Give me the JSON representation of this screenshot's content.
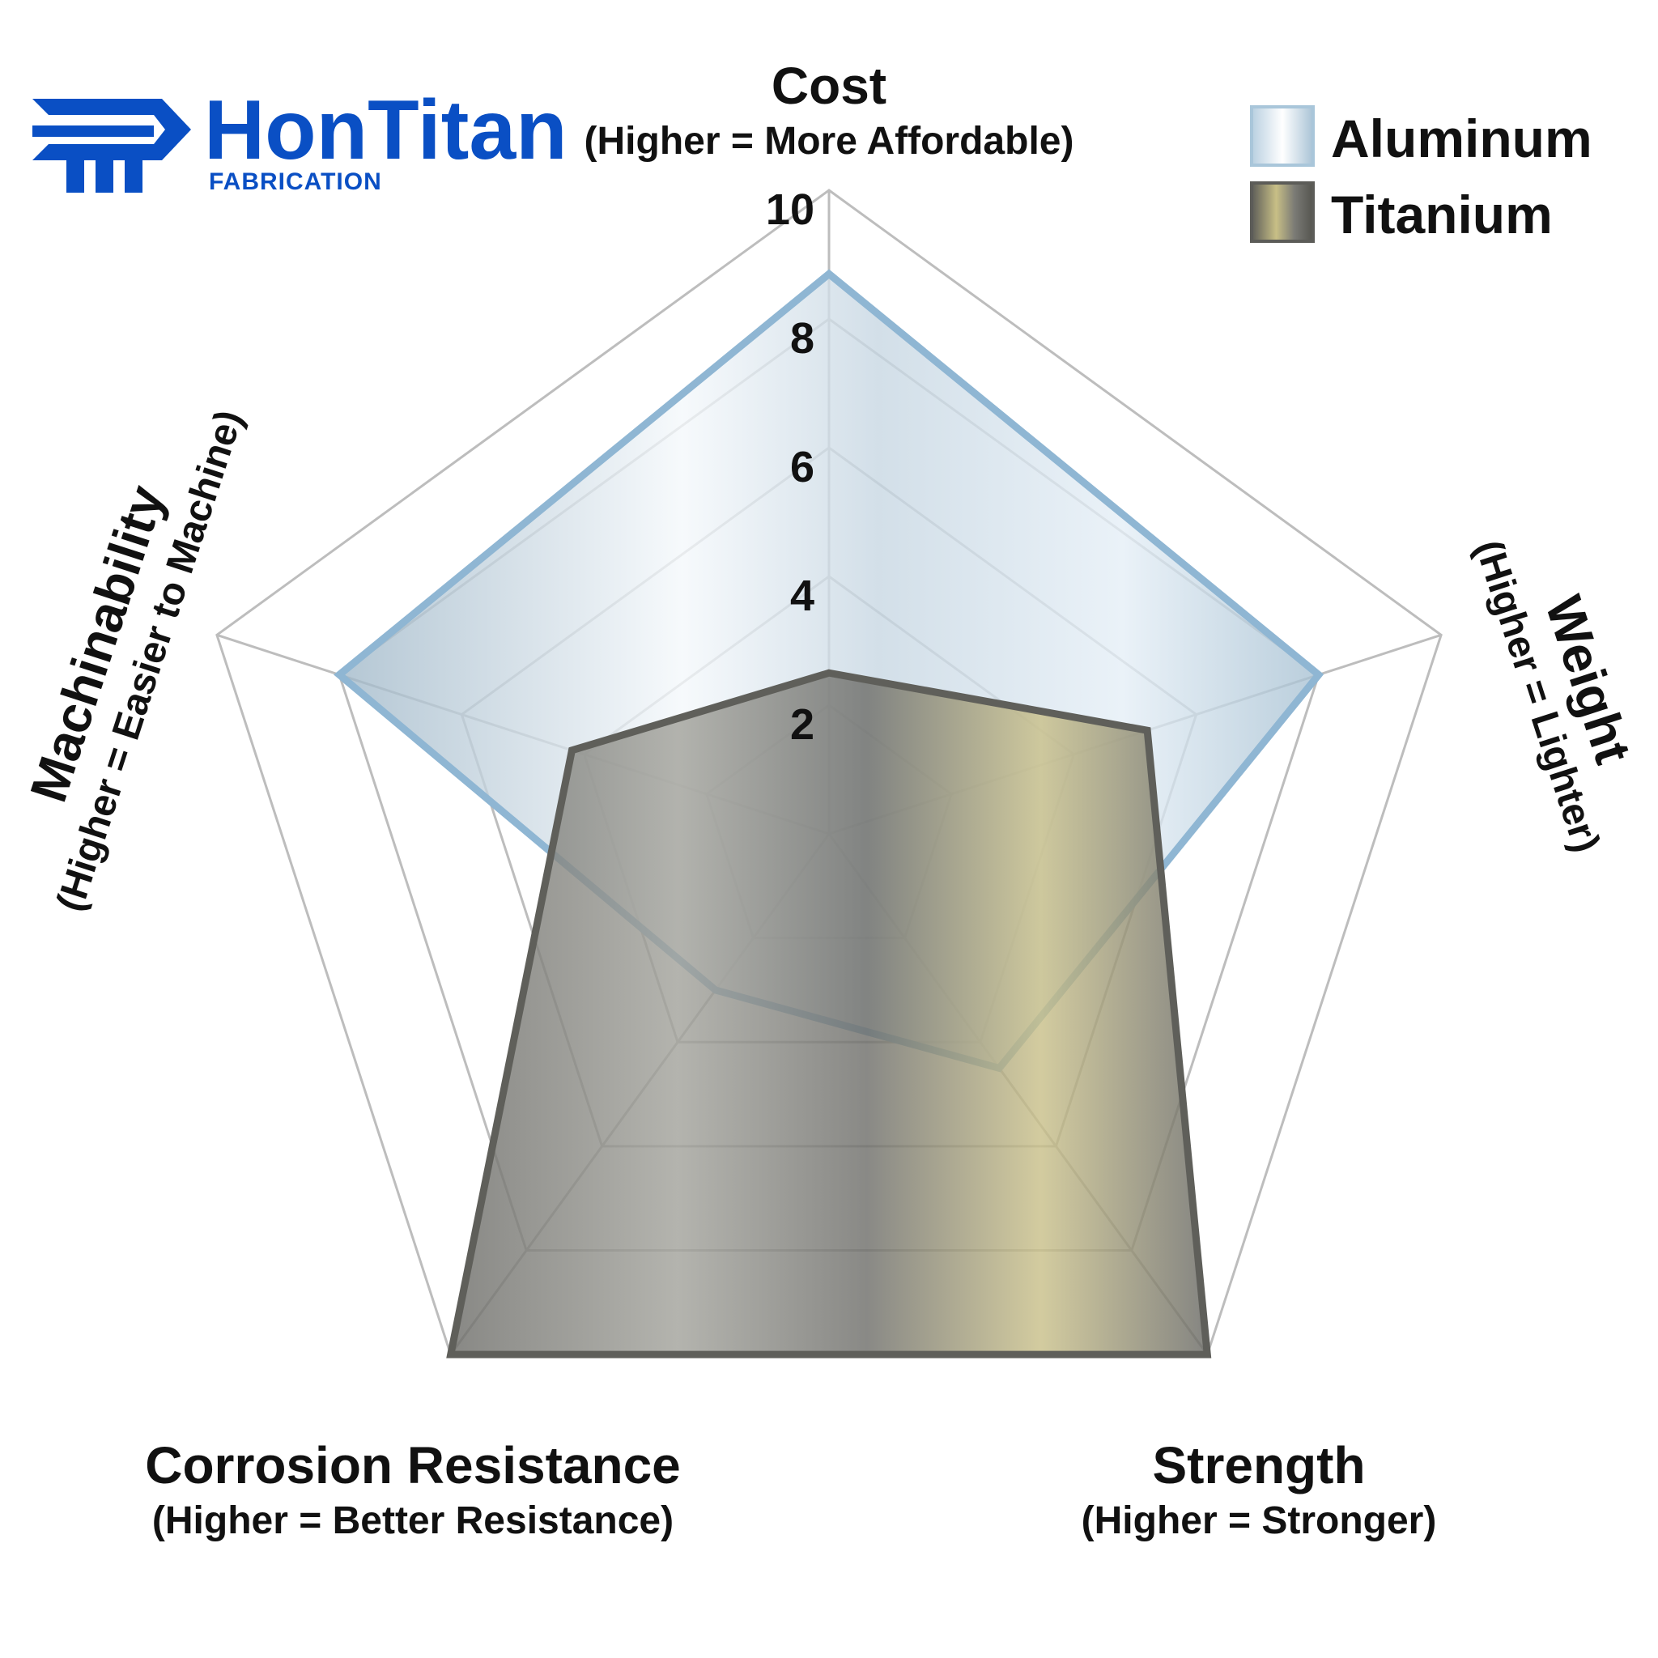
{
  "brand": {
    "name": "HonTitan",
    "subtitle": "FABRICATION",
    "color": "#0a4fc4"
  },
  "legend": [
    {
      "label": "Aluminum",
      "color": "#a9c6da"
    },
    {
      "label": "Titanium",
      "color": "#7d7d78"
    }
  ],
  "chart_data": {
    "type": "radar",
    "axes": [
      {
        "title": "Cost",
        "subtitle": "(Higher = More Affordable)"
      },
      {
        "title": "Weight",
        "subtitle": "(Higher = Lighter)"
      },
      {
        "title": "Strength",
        "subtitle": "(Higher = Stronger)"
      },
      {
        "title": "Corrosion Resistance",
        "subtitle": "(Higher = Better Resistance)"
      },
      {
        "title": "Machinability",
        "subtitle": "(Higher = Easier to Machine)"
      }
    ],
    "ticks": [
      "2",
      "4",
      "6",
      "8",
      "10"
    ],
    "tick_values": [
      2,
      4,
      6,
      8,
      10
    ],
    "range": [
      0,
      10
    ],
    "grid": true,
    "legend_position": "top-right",
    "series": [
      {
        "name": "Aluminum",
        "values": [
          8.7,
          8.0,
          4.5,
          3.0,
          8.0
        ],
        "stroke": "#8fb6d3",
        "fill": "#b8d3e4"
      },
      {
        "name": "Titanium",
        "values": [
          2.5,
          5.2,
          10,
          10,
          4.2
        ],
        "stroke": "#5f5f5a",
        "fill": "#7b7b76"
      }
    ]
  }
}
